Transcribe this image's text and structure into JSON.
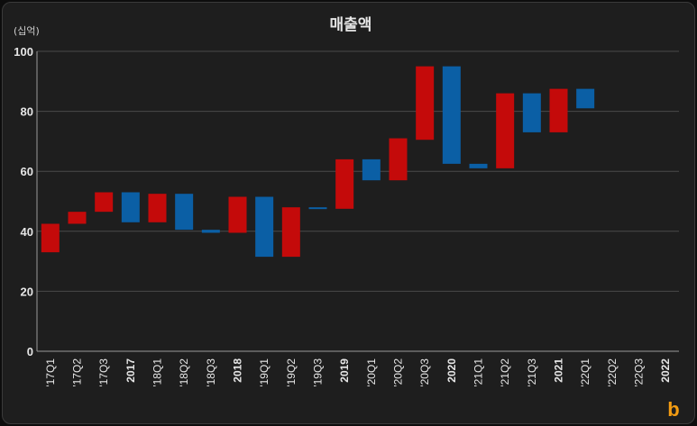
{
  "chart_data": {
    "type": "bar",
    "subtype": "waterfall",
    "title": "매출액",
    "unit_label": "(십억)",
    "ylim": [
      0,
      100
    ],
    "yticks": [
      0,
      20,
      40,
      60,
      80,
      100
    ],
    "grid": true,
    "categories": [
      "'17Q1",
      "'17Q2",
      "'17Q3",
      "2017",
      "'18Q1",
      "'18Q2",
      "'18Q3",
      "2018",
      "'19Q1",
      "'19Q2",
      "'19Q3",
      "2019",
      "'20Q1",
      "'20Q2",
      "'20Q3",
      "2020",
      "'21Q1",
      "'21Q2",
      "'21Q3",
      "2021",
      "'22Q1",
      "'22Q2",
      "'22Q3",
      "2022"
    ],
    "bold_categories": [
      "2017",
      "2018",
      "2019",
      "2020",
      "2021",
      "2022"
    ],
    "bars": [
      {
        "category": "'17Q1",
        "low": 33,
        "high": 42.5,
        "direction": "up"
      },
      {
        "category": "'17Q2",
        "low": 42.5,
        "high": 46.5,
        "direction": "up"
      },
      {
        "category": "'17Q3",
        "low": 46.5,
        "high": 53,
        "direction": "up"
      },
      {
        "category": "2017",
        "low": 43,
        "high": 53,
        "direction": "down"
      },
      {
        "category": "'18Q1",
        "low": 43,
        "high": 52.5,
        "direction": "up"
      },
      {
        "category": "'18Q2",
        "low": 40.5,
        "high": 52.5,
        "direction": "down"
      },
      {
        "category": "'18Q3",
        "low": 39.5,
        "high": 40.5,
        "direction": "down"
      },
      {
        "category": "2018",
        "low": 39.5,
        "high": 51.5,
        "direction": "up"
      },
      {
        "category": "'19Q1",
        "low": 31.5,
        "high": 51.5,
        "direction": "down"
      },
      {
        "category": "'19Q2",
        "low": 31.5,
        "high": 48,
        "direction": "up"
      },
      {
        "category": "'19Q3",
        "low": 47.5,
        "high": 48,
        "direction": "down"
      },
      {
        "category": "2019",
        "low": 47.5,
        "high": 64,
        "direction": "up"
      },
      {
        "category": "'20Q1",
        "low": 57,
        "high": 64,
        "direction": "down"
      },
      {
        "category": "'20Q2",
        "low": 57,
        "high": 71,
        "direction": "up"
      },
      {
        "category": "'20Q3",
        "low": 70.5,
        "high": 95,
        "direction": "up"
      },
      {
        "category": "2020",
        "low": 62.5,
        "high": 95,
        "direction": "down"
      },
      {
        "category": "'21Q1",
        "low": 61,
        "high": 62.5,
        "direction": "down"
      },
      {
        "category": "'21Q2",
        "low": 61,
        "high": 86,
        "direction": "up"
      },
      {
        "category": "'21Q3",
        "low": 73,
        "high": 86,
        "direction": "down"
      },
      {
        "category": "2021",
        "low": 73,
        "high": 87.5,
        "direction": "up"
      },
      {
        "category": "'22Q1",
        "low": 81,
        "high": 87.5,
        "direction": "down"
      }
    ],
    "colors": {
      "up": "#c40a0a",
      "down": "#0b5fa5",
      "background": "#1e1e1e"
    }
  },
  "logo": {
    "glyph": "b",
    "color": "#f39c12"
  }
}
